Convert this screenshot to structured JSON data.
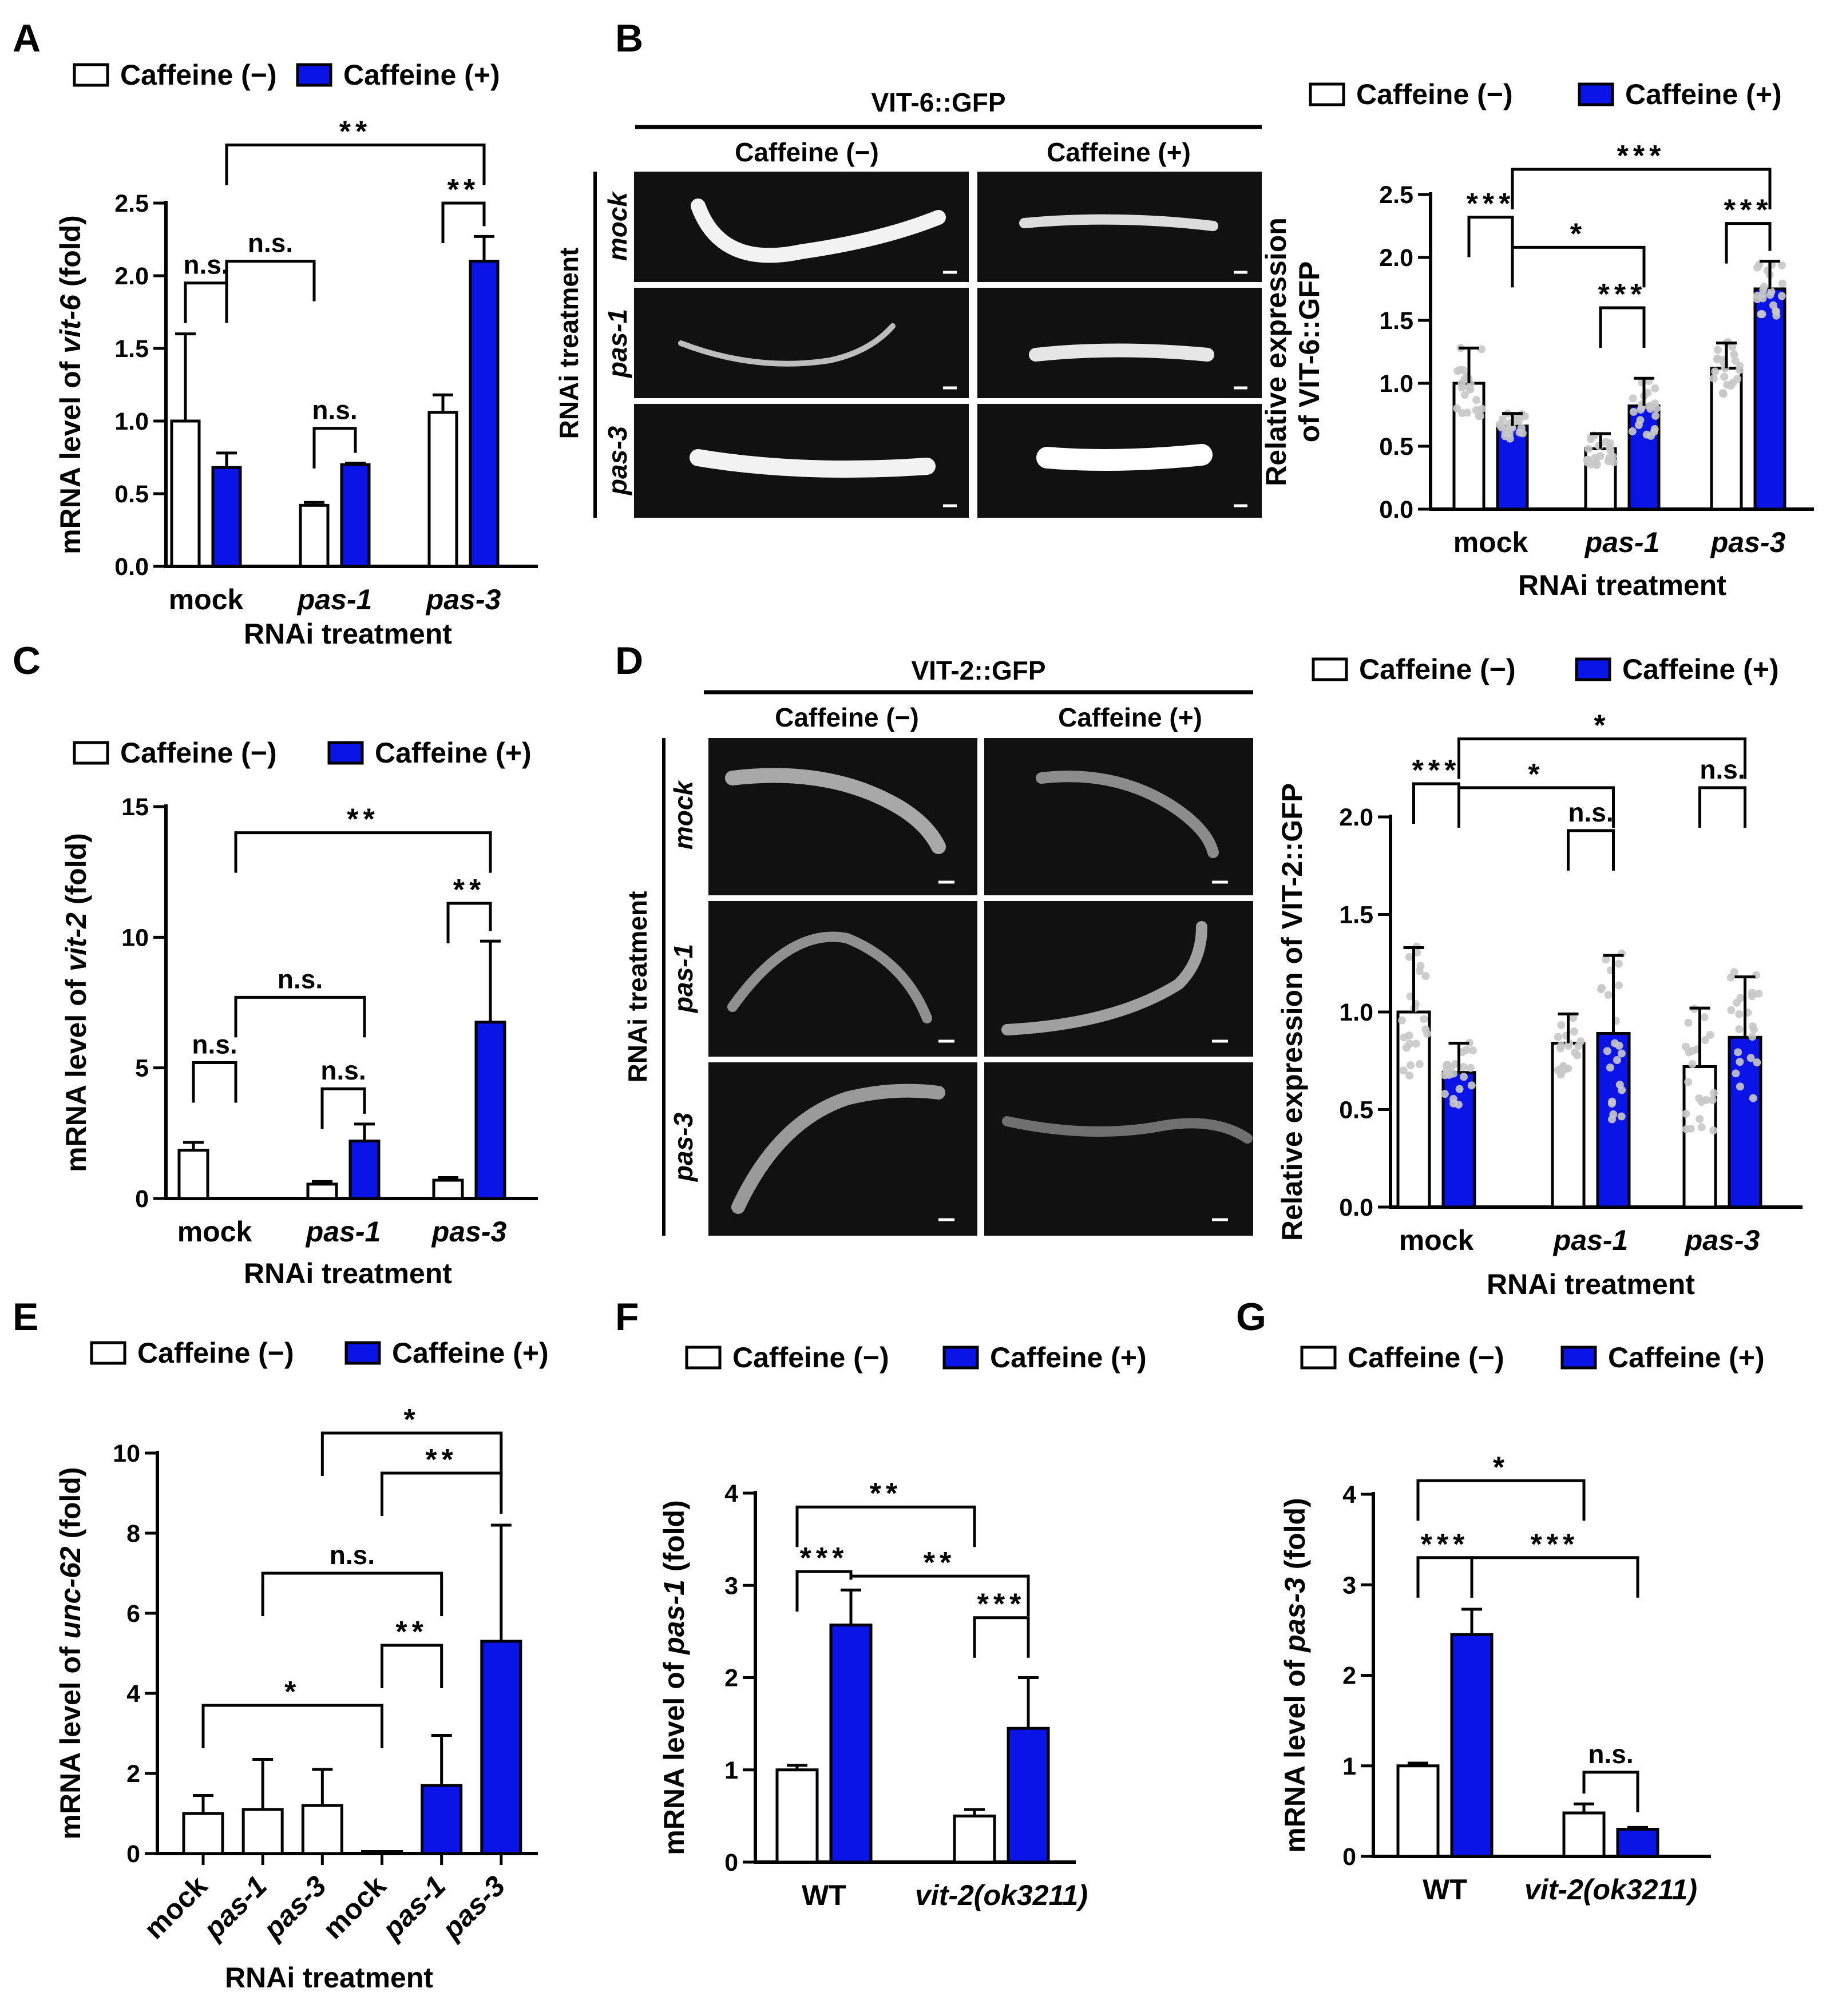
{
  "colors": {
    "minus": "#ffffff",
    "plus": "#0a14e6",
    "point": "#c8c8c8",
    "line": "#000000",
    "micro_bg": "#1a1a1a",
    "worm": "#e8e8e8"
  },
  "panel_labels": {
    "A": "A",
    "B": "B",
    "C": "C",
    "D": "D",
    "E": "E",
    "F": "F",
    "G": "G"
  },
  "micrographs": {
    "B": {
      "title": "VIT-6::GFP",
      "col_minus": "Caffeine (−)",
      "col_plus": "Caffeine (+)",
      "side": "RNAi treatment",
      "rows": [
        "mock",
        "pas-1",
        "pas-3"
      ]
    },
    "D": {
      "title": "VIT-2::GFP",
      "col_minus": "Caffeine (−)",
      "col_plus": "Caffeine (+)",
      "side": "RNAi treatment",
      "rows": [
        "mock",
        "pas-1",
        "pas-3"
      ]
    }
  },
  "chart_data": [
    {
      "id": "A",
      "type": "bar",
      "legend": [
        "Caffeine (−)",
        "Caffeine (+)"
      ],
      "categories": [
        "mock",
        "pas-1",
        "pas-3"
      ],
      "ylabel": {
        "pre": "mRNA level of ",
        "ital": "vit-6",
        "post": " (fold)"
      },
      "xlabel": "RNAi treatment",
      "ylim": [
        0,
        2.5
      ],
      "yticks": [
        "0.0",
        "0.5",
        "1.0",
        "1.5",
        "2.0",
        "2.5"
      ],
      "series": [
        {
          "name": "Caffeine (−)",
          "values": [
            1.0,
            0.42,
            1.06
          ],
          "err": [
            0.6,
            0.02,
            0.12
          ]
        },
        {
          "name": "Caffeine (+)",
          "values": [
            0.68,
            0.7,
            2.1
          ],
          "err": [
            0.1,
            0.01,
            0.17
          ]
        }
      ],
      "annotations": [
        {
          "a": [
            0,
            0
          ],
          "b": [
            0,
            1
          ],
          "level": 1.95,
          "text": "n.s."
        },
        {
          "a": [
            1,
            0
          ],
          "b": [
            1,
            1
          ],
          "level": 0.95,
          "text": "n.s."
        },
        {
          "a": [
            2,
            0
          ],
          "b": [
            2,
            1
          ],
          "level": 2.5,
          "text": "**"
        },
        {
          "a": [
            0,
            1
          ],
          "b": [
            1,
            0
          ],
          "level": 2.1,
          "text": "n.s."
        },
        {
          "a": [
            0,
            1
          ],
          "b": [
            2,
            1
          ],
          "level": 2.9,
          "text": "**"
        }
      ]
    },
    {
      "id": "B",
      "type": "bar",
      "legend": [
        "Caffeine (−)",
        "Caffeine (+)"
      ],
      "categories": [
        "mock",
        "pas-1",
        "pas-3"
      ],
      "ylabel": {
        "pre": "Relative expression",
        "pre2": "of VIT-6::GFP"
      },
      "xlabel": "RNAi treatment",
      "ylim": [
        0,
        2.5
      ],
      "yticks": [
        "0.0",
        "0.5",
        "1.0",
        "1.5",
        "2.0",
        "2.5"
      ],
      "series": [
        {
          "name": "Caffeine (−)",
          "values": [
            1.0,
            0.48,
            1.12
          ],
          "err": [
            0.28,
            0.12,
            0.2
          ]
        },
        {
          "name": "Caffeine (+)",
          "values": [
            0.66,
            0.82,
            1.75
          ],
          "err": [
            0.1,
            0.22,
            0.22
          ]
        }
      ],
      "annotations": [
        {
          "a": [
            0,
            0
          ],
          "b": [
            0,
            1
          ],
          "level": 2.32,
          "text": "***"
        },
        {
          "a": [
            1,
            0
          ],
          "b": [
            1,
            1
          ],
          "level": 1.6,
          "text": "***"
        },
        {
          "a": [
            2,
            0
          ],
          "b": [
            2,
            1
          ],
          "level": 2.27,
          "text": "***"
        },
        {
          "a": [
            0,
            1
          ],
          "b": [
            1,
            1
          ],
          "level": 2.08,
          "text": "*"
        },
        {
          "a": [
            0,
            1
          ],
          "b": [
            2,
            1
          ],
          "level": 2.7,
          "text": "***"
        }
      ]
    },
    {
      "id": "C",
      "type": "bar",
      "legend": [
        "Caffeine (−)",
        "Caffeine (+)"
      ],
      "categories": [
        "mock",
        "pas-1",
        "pas-3"
      ],
      "ylabel": {
        "pre": "mRNA level of ",
        "ital": "vit-2",
        "post": " (fold)"
      },
      "xlabel": "RNAi treatment",
      "ylim": [
        0,
        15
      ],
      "yticks": [
        "0",
        "5",
        "10",
        "15"
      ],
      "series": [
        {
          "name": "Caffeine (−)",
          "values": [
            1.85,
            0.55,
            0.7
          ],
          "err": [
            0.3,
            0.1,
            0.1
          ]
        },
        {
          "name": "Caffeine (+)",
          "values": [
            0.0,
            2.2,
            6.75
          ],
          "err": [
            0,
            0.65,
            3.1
          ]
        }
      ],
      "annotations": [
        {
          "a": [
            0,
            0
          ],
          "b": [
            0,
            1
          ],
          "level": 5.2,
          "text": "n.s."
        },
        {
          "a": [
            1,
            0
          ],
          "b": [
            1,
            1
          ],
          "level": 4.2,
          "text": "n.s."
        },
        {
          "a": [
            2,
            0
          ],
          "b": [
            2,
            1
          ],
          "level": 11.3,
          "text": "**"
        },
        {
          "a": [
            0,
            1
          ],
          "b": [
            1,
            1
          ],
          "level": 7.7,
          "text": "n.s."
        },
        {
          "a": [
            0,
            1
          ],
          "b": [
            2,
            1
          ],
          "level": 14.0,
          "text": "**"
        }
      ]
    },
    {
      "id": "D",
      "type": "bar",
      "legend": [
        "Caffeine (−)",
        "Caffeine (+)"
      ],
      "categories": [
        "mock",
        "pas-1",
        "pas-3"
      ],
      "ylabel": {
        "pre": "Relative expression of VIT-2::GFP"
      },
      "xlabel": "RNAi treatment",
      "ylim": [
        0,
        2.0
      ],
      "yticks": [
        "0.0",
        "0.5",
        "1.0",
        "1.5",
        "2.0"
      ],
      "series": [
        {
          "name": "Caffeine (−)",
          "values": [
            1.0,
            0.84,
            0.72
          ],
          "err": [
            0.33,
            0.15,
            0.3
          ]
        },
        {
          "name": "Caffeine (+)",
          "values": [
            0.69,
            0.89,
            0.87
          ],
          "err": [
            0.15,
            0.4,
            0.31
          ]
        }
      ],
      "annotations": [
        {
          "a": [
            0,
            0
          ],
          "b": [
            0,
            1
          ],
          "level": 2.17,
          "text": "***"
        },
        {
          "a": [
            1,
            0
          ],
          "b": [
            1,
            1
          ],
          "level": 1.93,
          "text": "n.s."
        },
        {
          "a": [
            2,
            0
          ],
          "b": [
            2,
            1
          ],
          "level": 2.15,
          "text": "n.s."
        },
        {
          "a": [
            0,
            1
          ],
          "b": [
            1,
            1
          ],
          "level": 2.15,
          "text": "*"
        },
        {
          "a": [
            0,
            1
          ],
          "b": [
            2,
            1
          ],
          "level": 2.4,
          "text": "*"
        }
      ]
    },
    {
      "id": "E",
      "type": "bar",
      "rotated": true,
      "legend": [
        "Caffeine (−)",
        "Caffeine (+)"
      ],
      "categories": [
        "mock",
        "pas-1",
        "pas-3",
        "mock",
        "pas-1",
        "pas-3"
      ],
      "ylabel": {
        "pre": "mRNA level of ",
        "ital": "unc-62",
        "post": " (fold)"
      },
      "xlabel": "RNAi treatment",
      "ylim": [
        0,
        10
      ],
      "yticks": [
        "0",
        "2",
        "4",
        "6",
        "8",
        "10"
      ],
      "bars": [
        {
          "value": 1.0,
          "err": 0.45,
          "group": "minus"
        },
        {
          "value": 1.1,
          "err": 1.25,
          "group": "minus"
        },
        {
          "value": 1.2,
          "err": 0.9,
          "group": "minus"
        },
        {
          "value": 0.05,
          "err": 0,
          "group": "minus"
        },
        {
          "value": 1.7,
          "err": 1.25,
          "group": "plus"
        },
        {
          "value": 5.3,
          "err": 2.9,
          "group": "plus"
        }
      ],
      "annotations": [
        {
          "a": 0,
          "b": 3,
          "level": 3.7,
          "text": "*"
        },
        {
          "a": 3,
          "b": 4,
          "level": 5.2,
          "text": "**"
        },
        {
          "a": 1,
          "b": 4,
          "level": 7.0,
          "text": "n.s."
        },
        {
          "a": 3,
          "b": 5,
          "level": 9.5,
          "text": "**"
        },
        {
          "a": 2,
          "b": 5,
          "level": 10.5,
          "text": "*"
        }
      ]
    },
    {
      "id": "F",
      "type": "bar",
      "legend": [
        "Caffeine (−)",
        "Caffeine (+)"
      ],
      "categories": [
        "WT",
        "vit-2(ok3211)"
      ],
      "ylabel": {
        "pre": "mRNA level of ",
        "ital": "pas-1",
        "post": " (fold)"
      },
      "xlabel": "",
      "ylim": [
        0,
        4
      ],
      "yticks": [
        "0",
        "1",
        "2",
        "3",
        "4"
      ],
      "series": [
        {
          "name": "Caffeine (−)",
          "values": [
            1.0,
            0.5
          ],
          "err": [
            0.05,
            0.07
          ]
        },
        {
          "name": "Caffeine (+)",
          "values": [
            2.57,
            1.45
          ],
          "err": [
            0.38,
            0.55
          ]
        }
      ],
      "annotations": [
        {
          "a": [
            0,
            0
          ],
          "b": [
            0,
            1
          ],
          "level": 3.15,
          "text": "***"
        },
        {
          "a": [
            1,
            0
          ],
          "b": [
            1,
            1
          ],
          "level": 2.65,
          "text": "***"
        },
        {
          "a": [
            0,
            1
          ],
          "b": [
            1,
            1
          ],
          "level": 3.1,
          "text": "**"
        },
        {
          "a": [
            0,
            0
          ],
          "b": [
            1,
            0
          ],
          "level": 3.85,
          "text": "**"
        }
      ]
    },
    {
      "id": "G",
      "type": "bar",
      "legend": [
        "Caffeine (−)",
        "Caffeine (+)"
      ],
      "categories": [
        "WT",
        "vit-2(ok3211)"
      ],
      "ylabel": {
        "pre": "mRNA level of ",
        "ital": "pas-3",
        "post": " (fold)"
      },
      "xlabel": "",
      "ylim": [
        0,
        4
      ],
      "yticks": [
        "0",
        "1",
        "2",
        "3",
        "4"
      ],
      "series": [
        {
          "name": "Caffeine (−)",
          "values": [
            1.0,
            0.48
          ],
          "err": [
            0.03,
            0.1
          ]
        },
        {
          "name": "Caffeine (+)",
          "values": [
            2.45,
            0.3
          ],
          "err": [
            0.28,
            0.02
          ]
        }
      ],
      "annotations": [
        {
          "a": [
            0,
            0
          ],
          "b": [
            0,
            1
          ],
          "level": 3.3,
          "text": "***"
        },
        {
          "a": [
            1,
            0
          ],
          "b": [
            1,
            1
          ],
          "level": 0.93,
          "text": "n.s."
        },
        {
          "a": [
            0,
            1
          ],
          "b": [
            1,
            1
          ],
          "level": 3.3,
          "text": "***"
        },
        {
          "a": [
            0,
            0
          ],
          "b": [
            1,
            0
          ],
          "level": 4.15,
          "text": "*"
        }
      ]
    }
  ]
}
